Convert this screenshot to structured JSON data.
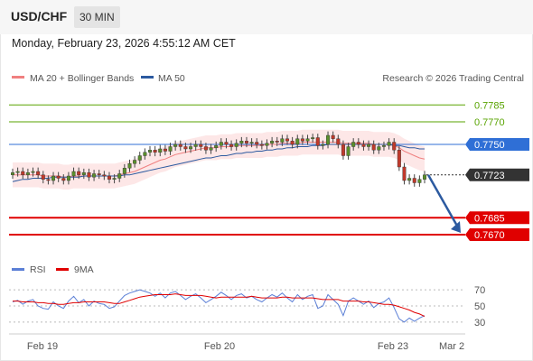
{
  "header": {
    "symbol": "USD/CHF",
    "timeframe": "30 MIN"
  },
  "datetime": "Monday, February 23, 2026 4:55:12 AM CET",
  "legend": {
    "items": [
      {
        "label": "MA 20 + Bollinger Bands",
        "color": "#f08080"
      },
      {
        "label": "MA 50",
        "color": "#2c5aa0"
      }
    ],
    "copyright": "Research © 2026 Trading Central"
  },
  "chart_data": {
    "type": "candlestick",
    "y_range": [
      0.7654,
      0.7798
    ],
    "levels": [
      {
        "label": "0.7785",
        "value": 0.7785,
        "color": "#58a300",
        "style": "text"
      },
      {
        "label": "0.7770",
        "value": 0.777,
        "color": "#58a300",
        "style": "text"
      },
      {
        "label": "0.7750",
        "value": 0.775,
        "color": "#2f6fd6",
        "style": "box"
      },
      {
        "label": "0.7723",
        "value": 0.7723,
        "color": "#333333",
        "style": "box-dotted"
      },
      {
        "label": "0.7685",
        "value": 0.7685,
        "color": "#e00000",
        "style": "box-thick"
      },
      {
        "label": "0.7670",
        "value": 0.767,
        "color": "#e00000",
        "style": "box-thick"
      }
    ],
    "close_series": [
      0.7725,
      0.7726,
      0.7723,
      0.7725,
      0.7726,
      0.7723,
      0.7719,
      0.7718,
      0.7722,
      0.772,
      0.7718,
      0.7722,
      0.7726,
      0.7723,
      0.7725,
      0.7721,
      0.7724,
      0.7723,
      0.7722,
      0.7719,
      0.772,
      0.7724,
      0.7729,
      0.7733,
      0.7736,
      0.774,
      0.7743,
      0.7745,
      0.7743,
      0.7746,
      0.7744,
      0.7748,
      0.775,
      0.7748,
      0.7746,
      0.7748,
      0.775,
      0.7748,
      0.7745,
      0.7747,
      0.7749,
      0.7752,
      0.775,
      0.7748,
      0.7751,
      0.7753,
      0.7751,
      0.7752,
      0.775,
      0.7749,
      0.7751,
      0.7753,
      0.7752,
      0.7755,
      0.7753,
      0.775,
      0.7755,
      0.7753,
      0.7755,
      0.7756,
      0.7749,
      0.775,
      0.7758,
      0.7755,
      0.775,
      0.774,
      0.7748,
      0.7752,
      0.775,
      0.7748,
      0.775,
      0.7745,
      0.7748,
      0.7749,
      0.7752,
      0.7745,
      0.773,
      0.7718,
      0.772,
      0.7716,
      0.7719,
      0.7723
    ],
    "ma20": [
      0.7723,
      0.7723,
      0.7723,
      0.7723,
      0.7723,
      0.7723,
      0.7722,
      0.7722,
      0.7722,
      0.7722,
      0.7721,
      0.7721,
      0.7722,
      0.7722,
      0.7722,
      0.7722,
      0.7722,
      0.7722,
      0.7722,
      0.7722,
      0.7722,
      0.7723,
      0.7724,
      0.7725,
      0.7726,
      0.7728,
      0.773,
      0.7732,
      0.7734,
      0.7736,
      0.7737,
      0.7739,
      0.7741,
      0.7742,
      0.7743,
      0.7744,
      0.7745,
      0.7746,
      0.7747,
      0.7747,
      0.7747,
      0.7748,
      0.7748,
      0.7748,
      0.7749,
      0.7749,
      0.7749,
      0.7749,
      0.7749,
      0.7749,
      0.775,
      0.775,
      0.775,
      0.7751,
      0.7751,
      0.7751,
      0.7751,
      0.7752,
      0.7752,
      0.7752,
      0.7752,
      0.7752,
      0.7752,
      0.7752,
      0.7752,
      0.7751,
      0.7751,
      0.7751,
      0.7751,
      0.7751,
      0.7751,
      0.775,
      0.775,
      0.775,
      0.775,
      0.7749,
      0.7747,
      0.7744,
      0.7742,
      0.774,
      0.7738,
      0.7737
    ],
    "ma50": [
      0.7717,
      0.7718,
      0.7719,
      0.7719,
      0.772,
      0.772,
      0.772,
      0.772,
      0.7721,
      0.7721,
      0.7721,
      0.7721,
      0.7721,
      0.7721,
      0.7722,
      0.7722,
      0.7722,
      0.7722,
      0.7722,
      0.7722,
      0.7722,
      0.7722,
      0.7723,
      0.7723,
      0.7724,
      0.7725,
      0.7726,
      0.7727,
      0.7728,
      0.7729,
      0.773,
      0.7731,
      0.7732,
      0.7733,
      0.7734,
      0.7735,
      0.7736,
      0.7737,
      0.7738,
      0.7738,
      0.7739,
      0.774,
      0.774,
      0.7741,
      0.7742,
      0.7742,
      0.7743,
      0.7743,
      0.7744,
      0.7744,
      0.7745,
      0.7745,
      0.7746,
      0.7746,
      0.7747,
      0.7747,
      0.7748,
      0.7748,
      0.7748,
      0.7749,
      0.7749,
      0.7749,
      0.775,
      0.775,
      0.775,
      0.775,
      0.775,
      0.775,
      0.775,
      0.775,
      0.775,
      0.775,
      0.775,
      0.775,
      0.775,
      0.7749,
      0.7749,
      0.7748,
      0.7747,
      0.7747,
      0.7746,
      0.7746
    ],
    "band_width": 0.0011,
    "forecast": {
      "from": 0.7723,
      "to": 0.767,
      "color": "#2c5aa0"
    },
    "x_ticks": [
      "Feb 19",
      "Feb 20",
      "Feb 23",
      "Mar 2"
    ],
    "rsi": {
      "legend": [
        {
          "label": "RSI",
          "color": "#5b7fd6"
        },
        {
          "label": "9MA",
          "color": "#e00000"
        }
      ],
      "y_range": [
        22,
        78
      ],
      "levels": [
        70,
        50,
        30
      ],
      "rsi_values": [
        55,
        57,
        52,
        56,
        58,
        50,
        47,
        46,
        55,
        50,
        47,
        56,
        62,
        54,
        58,
        50,
        56,
        53,
        52,
        47,
        49,
        56,
        63,
        66,
        68,
        70,
        68,
        66,
        62,
        66,
        60,
        66,
        68,
        63,
        58,
        62,
        65,
        60,
        54,
        58,
        62,
        67,
        63,
        58,
        63,
        65,
        60,
        62,
        58,
        55,
        60,
        64,
        61,
        66,
        60,
        55,
        64,
        58,
        62,
        64,
        47,
        50,
        64,
        58,
        52,
        38,
        56,
        60,
        56,
        52,
        56,
        48,
        53,
        55,
        60,
        48,
        34,
        30,
        35,
        31,
        35,
        38
      ],
      "ma9_values": [
        56,
        56,
        55,
        55,
        55,
        54,
        54,
        53,
        53,
        52,
        52,
        53,
        54,
        54,
        55,
        55,
        55,
        55,
        55,
        54,
        53,
        53,
        55,
        57,
        59,
        61,
        62,
        63,
        64,
        64,
        64,
        64,
        65,
        64,
        63,
        63,
        63,
        63,
        62,
        61,
        60,
        61,
        61,
        61,
        61,
        61,
        61,
        62,
        61,
        60,
        60,
        60,
        60,
        61,
        61,
        60,
        60,
        60,
        60,
        60,
        59,
        58,
        58,
        58,
        58,
        56,
        56,
        56,
        56,
        55,
        55,
        54,
        53,
        52,
        52,
        51,
        49,
        47,
        45,
        42,
        40,
        37
      ]
    }
  }
}
